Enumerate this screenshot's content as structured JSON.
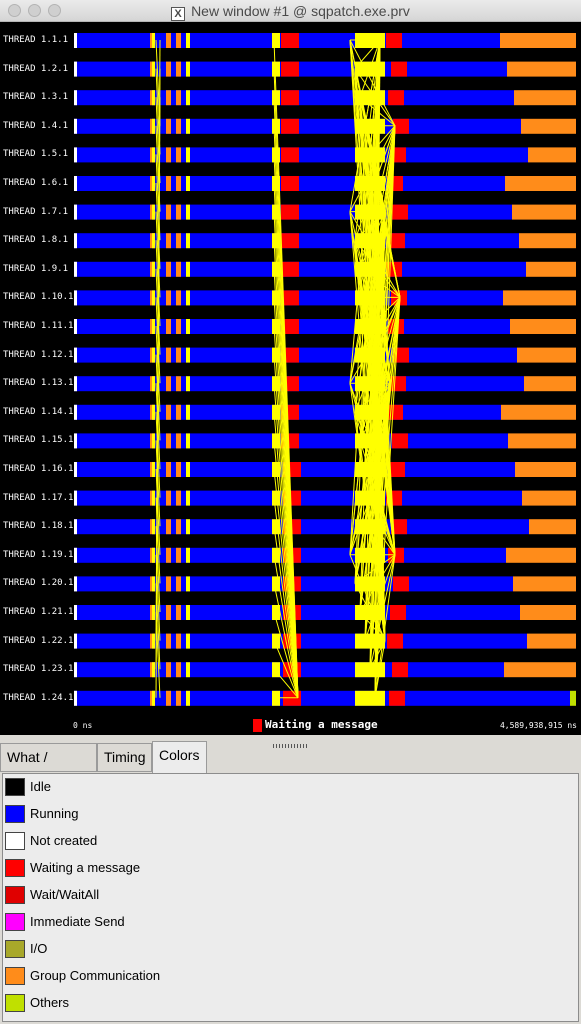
{
  "window": {
    "title": "New window #1 @ sqpatch.exe.prv",
    "x_glyph": "X"
  },
  "timeline": {
    "threads": [
      "THREAD 1.1.1",
      "THREAD 1.2.1",
      "THREAD 1.3.1",
      "THREAD 1.4.1",
      "THREAD 1.5.1",
      "THREAD 1.6.1",
      "THREAD 1.7.1",
      "THREAD 1.8.1",
      "THREAD 1.9.1",
      "THREAD 1.10.1",
      "THREAD 1.11.1",
      "THREAD 1.12.1",
      "THREAD 1.13.1",
      "THREAD 1.14.1",
      "THREAD 1.15.1",
      "THREAD 1.16.1",
      "THREAD 1.17.1",
      "THREAD 1.18.1",
      "THREAD 1.19.1",
      "THREAD 1.20.1",
      "THREAD 1.21.1",
      "THREAD 1.22.1",
      "THREAD 1.23.1",
      "THREAD 1.24.1"
    ],
    "start_label": "0 ns",
    "end_label": "4,589,938,915 ns",
    "selected_state": "Waiting a message",
    "selected_color": "#ff0000"
  },
  "tabs": [
    {
      "label": "What / Where"
    },
    {
      "label": "Timing"
    },
    {
      "label": "Colors"
    }
  ],
  "legend": [
    {
      "label": "Idle",
      "color": "#000000"
    },
    {
      "label": "Running",
      "color": "#0000ff"
    },
    {
      "label": "Not created",
      "color": "#ffffff"
    },
    {
      "label": "Waiting a message",
      "color": "#ff0000"
    },
    {
      "label": "Wait/WaitAll",
      "color": "#e00000"
    },
    {
      "label": "Immediate Send",
      "color": "#ff00ff"
    },
    {
      "label": "I/O",
      "color": "#a8a82a"
    },
    {
      "label": "Group Communication",
      "color": "#ff8c1a"
    },
    {
      "label": "Others",
      "color": "#c0e000"
    }
  ]
}
